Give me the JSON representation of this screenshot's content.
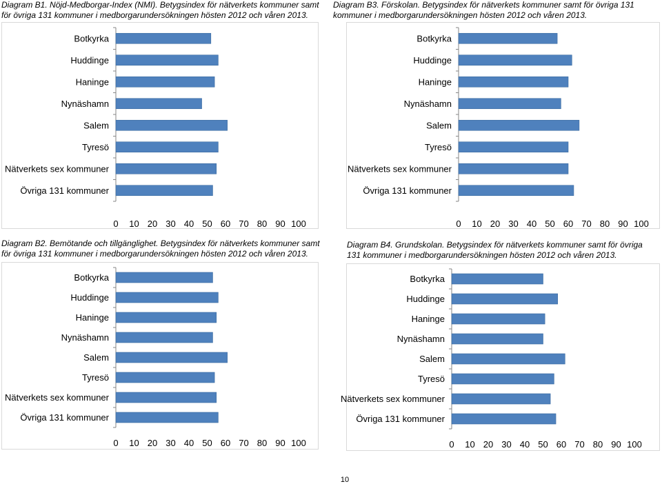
{
  "page_number": "10",
  "charts": [
    {
      "id": "b1",
      "caption": "Diagram B1. Nöjd-Medborgar-Index (NMI). Betygsindex för nätverkets kommuner samt för övriga 131 kommuner i medborgarundersökningen hösten 2012 och våren 2013."
    },
    {
      "id": "b3",
      "caption": "Diagram B3. Förskolan. Betygsindex för nätverkets kommuner samt för övriga 131 kommuner i medborgarundersökningen hösten 2012 och våren 2013."
    },
    {
      "id": "b2",
      "caption": "Diagram B2. Bemötande och tillgänglighet. Betygsindex för nätverkets kommuner samt för övriga 131 kommuner i medborgarundersökningen hösten 2012 och våren 2013."
    },
    {
      "id": "b4",
      "caption": "Diagram B4. Grundskolan. Betygsindex för nätverkets kommuner samt för övriga 131 kommuner i medborgarundersökningen hösten 2012 och våren 2013."
    }
  ],
  "colors": {
    "bar_fill": "#4f81bd",
    "bar_stroke": "#3a6a9f",
    "axis": "#868686",
    "frame": "#d9d9d9"
  },
  "chart_data": [
    {
      "type": "bar",
      "orientation": "horizontal",
      "title": "Diagram B1. Nöjd-Medborgar-Index (NMI)",
      "categories": [
        "Botkyrka",
        "Huddinge",
        "Haninge",
        "Nynäshamn",
        "Salem",
        "Tyresö",
        "Nätverkets sex kommuner",
        "Övriga 131 kommuner"
      ],
      "values": [
        52,
        56,
        54,
        47,
        61,
        56,
        55,
        53
      ],
      "xlim": [
        0,
        100
      ],
      "ticks": [
        "0",
        "10",
        "20",
        "30",
        "40",
        "50",
        "60",
        "70",
        "80",
        "90",
        "100"
      ],
      "tick_values": [
        0,
        10,
        20,
        30,
        40,
        50,
        60,
        70,
        80,
        90,
        100
      ],
      "grid": false
    },
    {
      "type": "bar",
      "orientation": "horizontal",
      "title": "Diagram B3. Förskolan",
      "categories": [
        "Botkyrka",
        "Huddinge",
        "Haninge",
        "Nynäshamn",
        "Salem",
        "Tyresö",
        "Nätverkets sex kommuner",
        "Övriga 131 kommuner"
      ],
      "values": [
        54,
        62,
        60,
        56,
        66,
        60,
        60,
        63
      ],
      "xlim": [
        0,
        100
      ],
      "ticks": [
        "0",
        "10",
        "20",
        "30",
        "40",
        "50",
        "60",
        "70",
        "80",
        "90",
        "100"
      ],
      "tick_values": [
        0,
        10,
        20,
        30,
        40,
        50,
        60,
        70,
        80,
        90,
        100
      ],
      "grid": false
    },
    {
      "type": "bar",
      "orientation": "horizontal",
      "title": "Diagram B2. Bemötande och tillgänglighet",
      "categories": [
        "Botkyrka",
        "Huddinge",
        "Haninge",
        "Nynäshamn",
        "Salem",
        "Tyresö",
        "Nätverkets sex kommuner",
        "Övriga 131 kommuner"
      ],
      "values": [
        53,
        56,
        55,
        53,
        61,
        54,
        55,
        56
      ],
      "xlim": [
        0,
        100
      ],
      "ticks": [
        "0",
        "10",
        "20",
        "30",
        "40",
        "50",
        "60",
        "70",
        "80",
        "90",
        "100"
      ],
      "tick_values": [
        0,
        10,
        20,
        30,
        40,
        50,
        60,
        70,
        80,
        90,
        100
      ],
      "grid": false
    },
    {
      "type": "bar",
      "orientation": "horizontal",
      "title": "Diagram B4. Grundskolan",
      "categories": [
        "Botkyrka",
        "Huddinge",
        "Haninge",
        "Nynäshamn",
        "Salem",
        "Tyresö",
        "Nätverkets sex kommuner",
        "Övriga 131 kommuner"
      ],
      "values": [
        50,
        58,
        51,
        50,
        62,
        56,
        54,
        57
      ],
      "xlim": [
        0,
        100
      ],
      "ticks": [
        "0",
        "10",
        "20",
        "30",
        "40",
        "50",
        "60",
        "70",
        "80",
        "90",
        "100"
      ],
      "tick_values": [
        0,
        10,
        20,
        30,
        40,
        50,
        60,
        70,
        80,
        90,
        100
      ],
      "grid": false
    }
  ]
}
